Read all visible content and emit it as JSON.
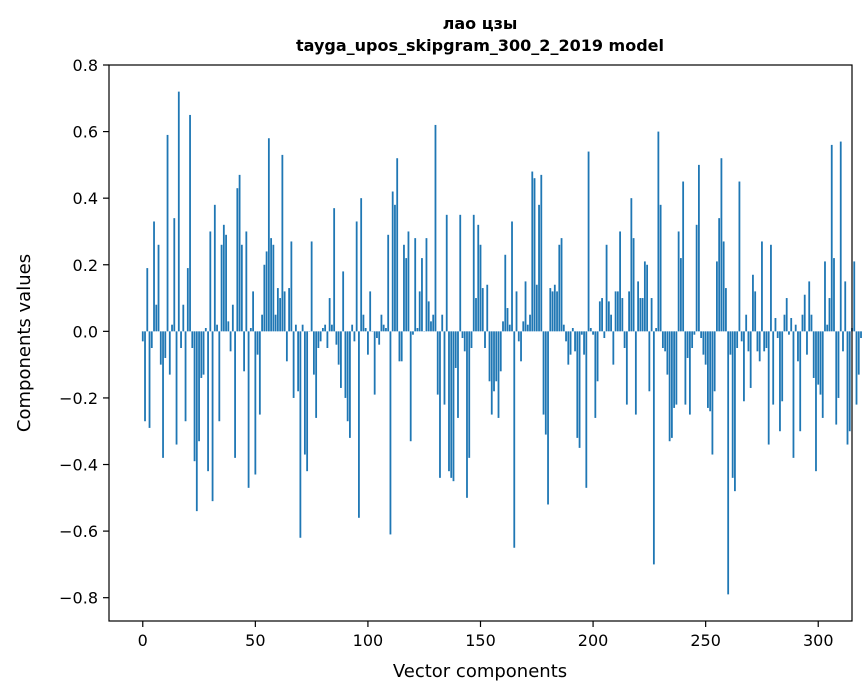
{
  "chart_data": {
    "type": "bar",
    "title": "лао цзы",
    "subtitle": "tayga_upos_skipgram_300_2_2019 model",
    "xlabel": "Vector components",
    "ylabel": "Components values",
    "xlim": [
      -15,
      315
    ],
    "ylim": [
      -0.87,
      0.8
    ],
    "xticks": [
      0,
      50,
      100,
      150,
      200,
      250,
      300
    ],
    "yticks": [
      -0.8,
      -0.6,
      -0.4,
      -0.2,
      0.0,
      0.2,
      0.4,
      0.6,
      0.8
    ],
    "ytick_labels": [
      "−0.8",
      "−0.6",
      "−0.4",
      "−0.2",
      "0.0",
      "0.2",
      "0.4",
      "0.6",
      "0.8"
    ],
    "bar_color": "#1f77b4",
    "grid": false,
    "values": [
      -0.03,
      -0.27,
      0.19,
      -0.29,
      -0.05,
      0.33,
      0.08,
      0.26,
      -0.1,
      -0.38,
      -0.08,
      0.59,
      -0.13,
      0.02,
      0.34,
      -0.34,
      0.72,
      -0.05,
      0.08,
      -0.27,
      0.19,
      0.65,
      -0.05,
      -0.39,
      -0.54,
      -0.33,
      -0.14,
      -0.13,
      0.01,
      -0.42,
      0.3,
      -0.51,
      0.38,
      0.02,
      -0.27,
      0.26,
      0.32,
      0.29,
      0.03,
      -0.06,
      0.08,
      -0.38,
      0.43,
      0.47,
      0.26,
      -0.12,
      0.3,
      -0.47,
      0.01,
      0.12,
      -0.43,
      -0.07,
      -0.25,
      0.05,
      0.2,
      0.24,
      0.58,
      0.28,
      0.26,
      0.05,
      0.13,
      0.1,
      0.53,
      0.12,
      -0.09,
      0.13,
      0.27,
      -0.2,
      0.02,
      -0.18,
      -0.62,
      0.02,
      -0.37,
      -0.42,
      0.0,
      0.27,
      -0.13,
      -0.26,
      -0.05,
      -0.03,
      0.01,
      0.02,
      -0.05,
      0.1,
      0.02,
      0.37,
      -0.04,
      -0.1,
      -0.17,
      0.18,
      -0.2,
      -0.27,
      -0.32,
      0.02,
      -0.03,
      0.33,
      -0.56,
      0.4,
      0.05,
      0.01,
      -0.07,
      0.12,
      0.0,
      -0.19,
      -0.02,
      -0.04,
      0.05,
      0.02,
      0.01,
      0.29,
      -0.61,
      0.42,
      0.38,
      0.52,
      -0.09,
      -0.09,
      0.26,
      0.22,
      0.3,
      -0.33,
      -0.01,
      0.28,
      0.01,
      0.12,
      0.22,
      0.0,
      0.28,
      0.09,
      0.03,
      0.05,
      0.62,
      -0.19,
      -0.44,
      0.05,
      -0.22,
      0.35,
      -0.42,
      -0.44,
      -0.45,
      -0.11,
      -0.26,
      0.35,
      -0.02,
      -0.06,
      -0.5,
      -0.38,
      -0.05,
      0.35,
      0.1,
      0.32,
      0.26,
      0.13,
      -0.05,
      0.14,
      -0.15,
      -0.25,
      -0.18,
      -0.15,
      -0.26,
      -0.12,
      0.03,
      0.23,
      0.07,
      0.02,
      0.33,
      -0.65,
      0.12,
      -0.03,
      -0.09,
      0.03,
      0.15,
      0.02,
      0.05,
      0.48,
      0.46,
      0.14,
      0.38,
      0.47,
      -0.25,
      -0.31,
      -0.52,
      0.13,
      0.12,
      0.14,
      0.12,
      0.26,
      0.28,
      0.02,
      -0.03,
      -0.1,
      -0.07,
      0.01,
      -0.06,
      -0.32,
      -0.35,
      -0.01,
      -0.07,
      -0.47,
      0.54,
      0.01,
      -0.01,
      -0.26,
      -0.15,
      0.09,
      0.1,
      -0.02,
      0.26,
      0.09,
      0.05,
      -0.1,
      0.12,
      0.12,
      0.3,
      0.1,
      -0.05,
      -0.22,
      0.12,
      0.4,
      0.28,
      -0.25,
      0.15,
      0.1,
      0.1,
      0.21,
      0.2,
      -0.18,
      0.1,
      -0.7,
      0.01,
      0.6,
      0.38,
      -0.05,
      -0.06,
      -0.13,
      -0.33,
      -0.32,
      -0.23,
      -0.22,
      0.3,
      0.22,
      0.45,
      -0.22,
      -0.08,
      -0.25,
      -0.05,
      -0.01,
      0.32,
      0.5,
      -0.02,
      -0.07,
      -0.1,
      -0.23,
      -0.24,
      -0.37,
      -0.18,
      0.21,
      0.34,
      0.52,
      0.27,
      0.13,
      -0.79,
      -0.07,
      -0.44,
      -0.48,
      -0.05,
      0.45,
      -0.03,
      -0.21,
      0.05,
      -0.06,
      -0.17,
      0.17,
      0.12,
      -0.06,
      -0.09,
      0.27,
      -0.06,
      -0.05,
      -0.34,
      0.26,
      -0.22,
      0.04,
      -0.02,
      -0.3,
      -0.21,
      0.05,
      0.1,
      -0.01,
      0.04,
      -0.38,
      0.02,
      -0.09,
      -0.3,
      0.05,
      0.11,
      -0.07,
      0.15,
      0.05,
      -0.14,
      -0.42,
      -0.16,
      -0.19,
      -0.26,
      0.21,
      0.02,
      0.1,
      0.56,
      0.22,
      -0.28,
      -0.2,
      0.57,
      -0.06,
      0.15,
      -0.34,
      -0.3,
      0.01,
      0.21,
      -0.22,
      -0.13,
      -0.02
    ]
  }
}
